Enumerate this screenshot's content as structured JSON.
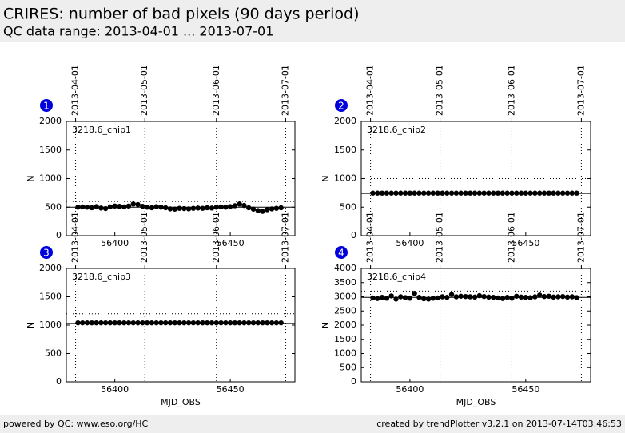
{
  "header": {
    "title": "CRIRES: number of bad pixels (90 days period)",
    "subtitle": "QC data range: 2013-04-01 ... 2013-07-01"
  },
  "footer": {
    "left": "powered by QC: www.eso.org/HC",
    "right": "created by trendPlotter v3.2.1 on 2013-07-14T03:46:53"
  },
  "chart_data": [
    {
      "type": "scatter",
      "badge": "1",
      "annotation": "3218.6_chip1",
      "y_label": "N",
      "color": "#000000",
      "x": [
        56384,
        56386,
        56388,
        56390,
        56392,
        56394,
        56396,
        56398,
        56400,
        56402,
        56404,
        56406,
        56408,
        56410,
        56412,
        56414,
        56416,
        56418,
        56420,
        56422,
        56424,
        56426,
        56428,
        56430,
        56432,
        56434,
        56436,
        56438,
        56440,
        56442,
        56444,
        56446,
        56448,
        56450,
        56452,
        56454,
        56456,
        56458,
        56460,
        56462,
        56464,
        56466,
        56468,
        56470,
        56472
      ],
      "values": [
        500,
        505,
        500,
        490,
        510,
        485,
        475,
        505,
        520,
        515,
        505,
        520,
        555,
        545,
        515,
        500,
        490,
        510,
        500,
        490,
        470,
        465,
        480,
        475,
        470,
        480,
        485,
        480,
        490,
        485,
        500,
        505,
        500,
        510,
        525,
        555,
        530,
        490,
        465,
        440,
        425,
        455,
        470,
        480,
        490
      ],
      "xlim": [
        56379,
        56478
      ],
      "xticks": [
        56400,
        56450
      ],
      "x2ticks": [
        {
          "value": 56383,
          "label": "2013-04-01"
        },
        {
          "value": 56413,
          "label": "2013-05-01"
        },
        {
          "value": 56444,
          "label": "2013-06-01"
        },
        {
          "value": 56474,
          "label": "2013-07-01"
        }
      ],
      "ylim": [
        0,
        2000
      ],
      "yticks": [
        0,
        500,
        1000,
        1500,
        2000
      ],
      "reference_lines": [
        {
          "value": 500,
          "style": "solid"
        },
        {
          "value": 600,
          "style": "dotted"
        }
      ]
    },
    {
      "type": "scatter",
      "badge": "2",
      "annotation": "3218.6_chip2",
      "y_label": "N",
      "color": "#000000",
      "x": [
        56384,
        56386,
        56388,
        56390,
        56392,
        56394,
        56396,
        56398,
        56400,
        56402,
        56404,
        56406,
        56408,
        56410,
        56412,
        56414,
        56416,
        56418,
        56420,
        56422,
        56424,
        56426,
        56428,
        56430,
        56432,
        56434,
        56436,
        56438,
        56440,
        56442,
        56444,
        56446,
        56448,
        56450,
        56452,
        56454,
        56456,
        56458,
        56460,
        56462,
        56464,
        56466,
        56468,
        56470,
        56472
      ],
      "values": [
        745,
        745,
        745,
        745,
        745,
        745,
        745,
        745,
        745,
        745,
        745,
        745,
        745,
        745,
        745,
        745,
        745,
        745,
        745,
        745,
        745,
        745,
        745,
        745,
        745,
        745,
        745,
        745,
        745,
        745,
        745,
        745,
        745,
        745,
        745,
        745,
        745,
        745,
        745,
        745,
        745,
        745,
        745,
        745,
        745
      ],
      "xlim": [
        56379,
        56478
      ],
      "xticks": [
        56400,
        56450
      ],
      "x2ticks": [
        {
          "value": 56383,
          "label": "2013-04-01"
        },
        {
          "value": 56413,
          "label": "2013-05-01"
        },
        {
          "value": 56444,
          "label": "2013-06-01"
        },
        {
          "value": 56474,
          "label": "2013-07-01"
        }
      ],
      "ylim": [
        0,
        2000
      ],
      "yticks": [
        0,
        500,
        1000,
        1500,
        2000
      ],
      "reference_lines": [
        {
          "value": 740,
          "style": "solid"
        },
        {
          "value": 1000,
          "style": "dotted"
        }
      ]
    },
    {
      "type": "scatter",
      "badge": "3",
      "annotation": "3218.6_chip3",
      "y_label": "N",
      "x_label": "MJD_OBS",
      "color": "#000000",
      "x": [
        56384,
        56386,
        56388,
        56390,
        56392,
        56394,
        56396,
        56398,
        56400,
        56402,
        56404,
        56406,
        56408,
        56410,
        56412,
        56414,
        56416,
        56418,
        56420,
        56422,
        56424,
        56426,
        56428,
        56430,
        56432,
        56434,
        56436,
        56438,
        56440,
        56442,
        56444,
        56446,
        56448,
        56450,
        56452,
        56454,
        56456,
        56458,
        56460,
        56462,
        56464,
        56466,
        56468,
        56470,
        56472
      ],
      "values": [
        1040,
        1040,
        1040,
        1040,
        1040,
        1040,
        1040,
        1040,
        1040,
        1040,
        1040,
        1040,
        1040,
        1040,
        1040,
        1040,
        1040,
        1040,
        1040,
        1040,
        1040,
        1040,
        1040,
        1040,
        1040,
        1040,
        1040,
        1040,
        1040,
        1040,
        1040,
        1040,
        1040,
        1040,
        1040,
        1040,
        1040,
        1040,
        1040,
        1040,
        1040,
        1040,
        1040,
        1040,
        1040
      ],
      "xlim": [
        56379,
        56478
      ],
      "xticks": [
        56400,
        56450
      ],
      "x2ticks": [
        {
          "value": 56383,
          "label": "2013-04-01"
        },
        {
          "value": 56413,
          "label": "2013-05-01"
        },
        {
          "value": 56444,
          "label": "2013-06-01"
        },
        {
          "value": 56474,
          "label": "2013-07-01"
        }
      ],
      "ylim": [
        0,
        2000
      ],
      "yticks": [
        0,
        500,
        1000,
        1500,
        2000
      ],
      "reference_lines": [
        {
          "value": 1030,
          "style": "solid"
        },
        {
          "value": 1200,
          "style": "dotted"
        }
      ]
    },
    {
      "type": "scatter",
      "badge": "4",
      "annotation": "3218.6_chip4",
      "y_label": "N",
      "x_label": "MJD_OBS",
      "color": "#000000",
      "x": [
        56384,
        56386,
        56388,
        56390,
        56392,
        56394,
        56396,
        56398,
        56400,
        56402,
        56404,
        56406,
        56408,
        56410,
        56412,
        56414,
        56416,
        56418,
        56420,
        56422,
        56424,
        56426,
        56428,
        56430,
        56432,
        56434,
        56436,
        56438,
        56440,
        56442,
        56444,
        56446,
        56448,
        56450,
        56452,
        56454,
        56456,
        56458,
        56460,
        56462,
        56464,
        56466,
        56468,
        56470,
        56472
      ],
      "values": [
        2960,
        2940,
        2980,
        2950,
        3030,
        2920,
        3000,
        2970,
        2950,
        3120,
        2980,
        2930,
        2920,
        2950,
        2960,
        3000,
        2980,
        3080,
        3000,
        3020,
        3010,
        3000,
        2990,
        3040,
        3010,
        2990,
        2980,
        2960,
        2940,
        2980,
        2950,
        3020,
        2990,
        2980,
        2970,
        3000,
        3060,
        3010,
        3020,
        2990,
        3000,
        3010,
        2990,
        3000,
        2970
      ],
      "xlim": [
        56379,
        56478
      ],
      "xticks": [
        56400,
        56450
      ],
      "x2ticks": [
        {
          "value": 56383,
          "label": "2013-04-01"
        },
        {
          "value": 56413,
          "label": "2013-05-01"
        },
        {
          "value": 56444,
          "label": "2013-06-01"
        },
        {
          "value": 56474,
          "label": "2013-07-01"
        }
      ],
      "ylim": [
        0,
        4000
      ],
      "yticks": [
        0,
        500,
        1000,
        1500,
        2000,
        2500,
        3000,
        3500,
        4000
      ],
      "reference_lines": [
        {
          "value": 2980,
          "style": "solid"
        },
        {
          "value": 3200,
          "style": "dotted"
        }
      ]
    }
  ]
}
